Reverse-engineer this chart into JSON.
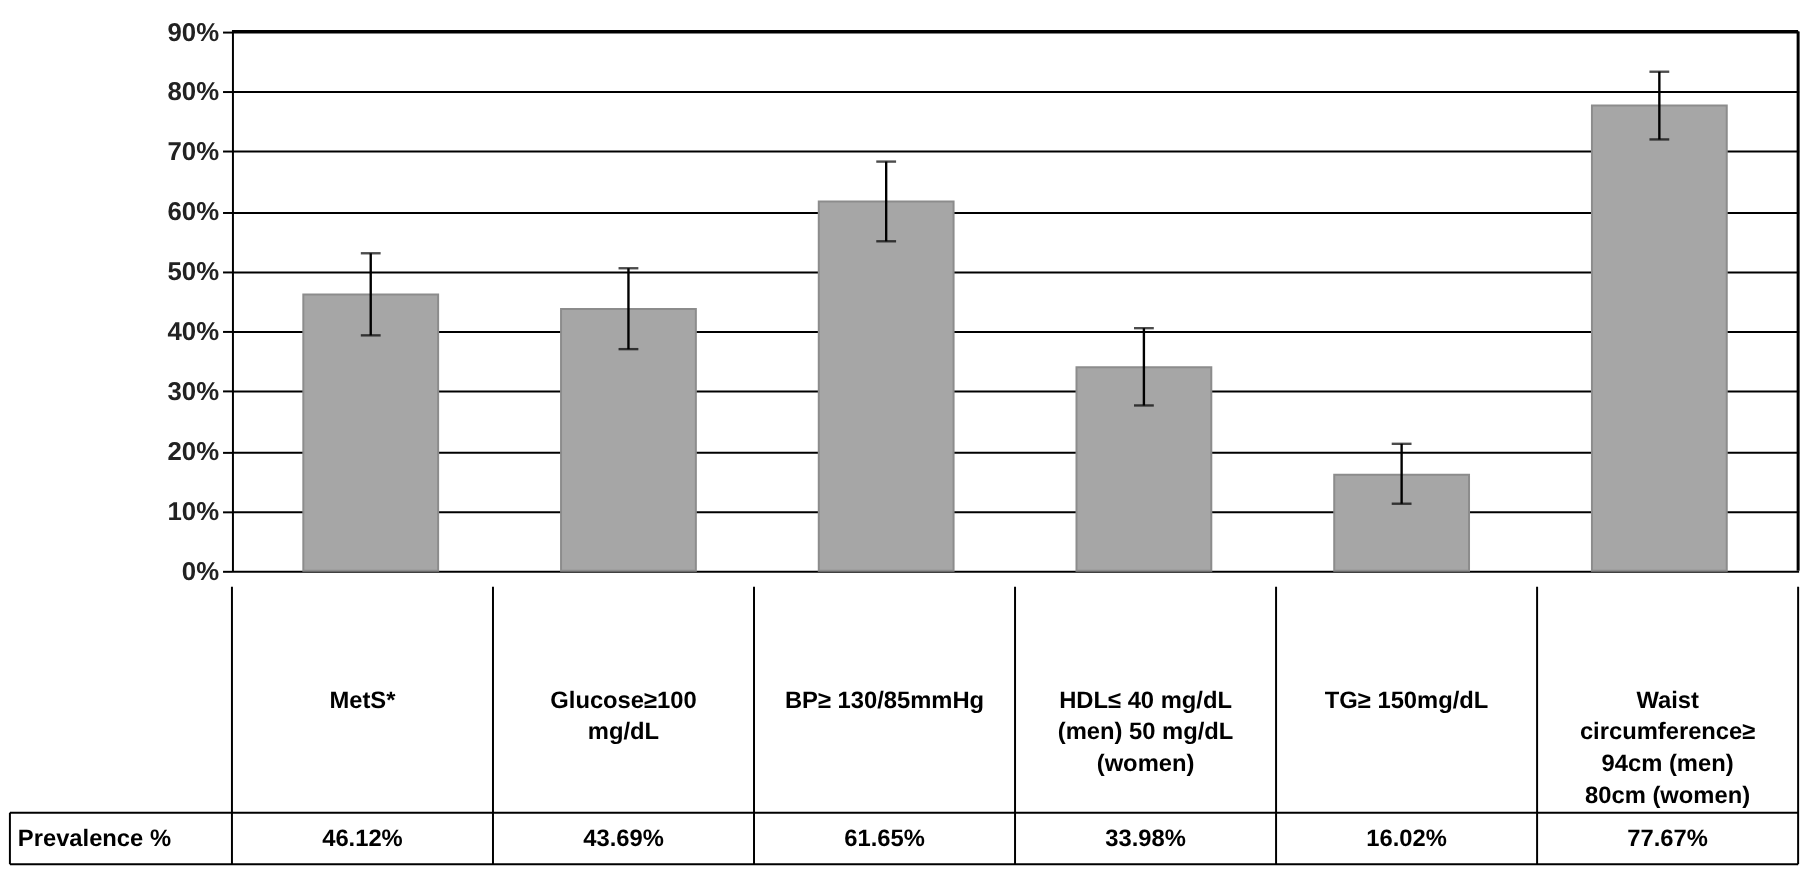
{
  "chart_data": {
    "type": "bar",
    "categories": [
      "MetS*",
      "Glucose≥100 mg/dL",
      "BP≥ 130/85mmHg",
      "HDL≤ 40 mg/dL (men) 50 mg/dL (women)",
      "TG≥ 150mg/dL",
      "Waist circumference≥ 94cm (men) 80cm (women)"
    ],
    "values": [
      46.12,
      43.69,
      61.65,
      33.98,
      16.02,
      77.67
    ],
    "errors": [
      [
        39.3,
        53.0
      ],
      [
        37.0,
        50.5
      ],
      [
        55.0,
        68.3
      ],
      [
        27.6,
        40.5
      ],
      [
        11.2,
        21.2
      ],
      [
        72.0,
        83.3
      ]
    ],
    "value_labels": [
      "46.12%",
      "43.69%",
      "61.65%",
      "33.98%",
      "16.02%",
      "77.67%"
    ],
    "color": "#a6a6a6",
    "ylim": [
      0,
      90
    ],
    "yticks": [
      {
        "value": 0,
        "label": "0%"
      },
      {
        "value": 10,
        "label": "10%"
      },
      {
        "value": 20,
        "label": "20%"
      },
      {
        "value": 30,
        "label": "30%"
      },
      {
        "value": 40,
        "label": "40%"
      },
      {
        "value": 50,
        "label": "50%"
      },
      {
        "value": 60,
        "label": "60%"
      },
      {
        "value": 70,
        "label": "70%"
      },
      {
        "value": 80,
        "label": "80%"
      },
      {
        "value": 90,
        "label": "90%"
      }
    ],
    "grid": "y",
    "annotations": [
      "Prevalence %"
    ]
  }
}
